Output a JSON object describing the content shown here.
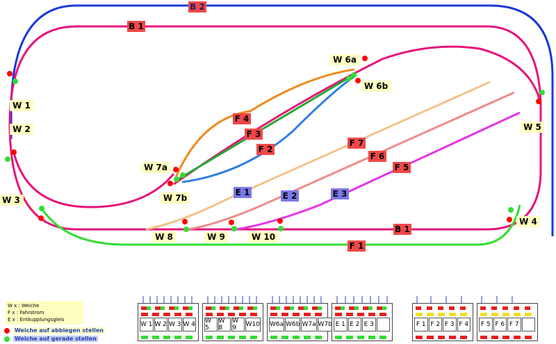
{
  "diagram": {
    "tracks": [
      {
        "id": "B 2",
        "color": "#1a3ad6"
      },
      {
        "id": "B 1",
        "color": "#e6157a"
      },
      {
        "id": "F 1",
        "color": "#33dd33"
      },
      {
        "id": "F 2",
        "color": "#2f7fe0"
      },
      {
        "id": "F 3",
        "color": "#22aa33"
      },
      {
        "id": "F 4",
        "color": "#ee8a1a"
      },
      {
        "id": "F 5",
        "color": "#e633e6"
      },
      {
        "id": "F 6",
        "color": "#f08a8a"
      },
      {
        "id": "F 7",
        "color": "#f4c28c"
      }
    ],
    "track_labels": [
      "B 2",
      "B 1",
      "B 1",
      "F 1",
      "F 2",
      "F 3",
      "F 4",
      "F 5",
      "F 6",
      "F 7",
      "E 1",
      "E 2",
      "E 3"
    ],
    "switch_labels": [
      "W 1",
      "W 2",
      "W 3",
      "W 4",
      "W 5",
      "W 6a",
      "W 6b",
      "W 7a",
      "W 7b",
      "W 8",
      "W 9",
      "W 10"
    ]
  },
  "legend": {
    "line_w": "W x : Weiche",
    "line_f": "F x  : Fahrstrom",
    "line_e": "E x  : Entkupplungsgleis",
    "red_dot_label": "Weiche  auf abbiegen stellen",
    "green_dot_label": "Weiche auf gerade stellen",
    "red_color": "#ff0000",
    "green_color": "#33dd33"
  },
  "panels": [
    {
      "name": "weichen-panel-1",
      "cells": [
        "W 1",
        "W 2",
        "W 3",
        "W 4"
      ]
    },
    {
      "name": "weichen-panel-2",
      "cells": [
        "W 5",
        "W 8",
        "W 9",
        "W10"
      ]
    },
    {
      "name": "weichen-panel-3",
      "cells": [
        "W6a",
        "W6b",
        "W7a",
        "W7b"
      ]
    },
    {
      "name": "entkuppler-panel",
      "cells": [
        "E 1",
        "E 2",
        "E 3",
        ""
      ]
    },
    {
      "name": "fahrstrom-panel-1",
      "cells": [
        "F 1",
        "F 2",
        "F 3",
        "F 4"
      ]
    },
    {
      "name": "fahrstrom-panel-2",
      "cells": [
        "F 5",
        "F 6",
        "F 7",
        ""
      ]
    }
  ]
}
